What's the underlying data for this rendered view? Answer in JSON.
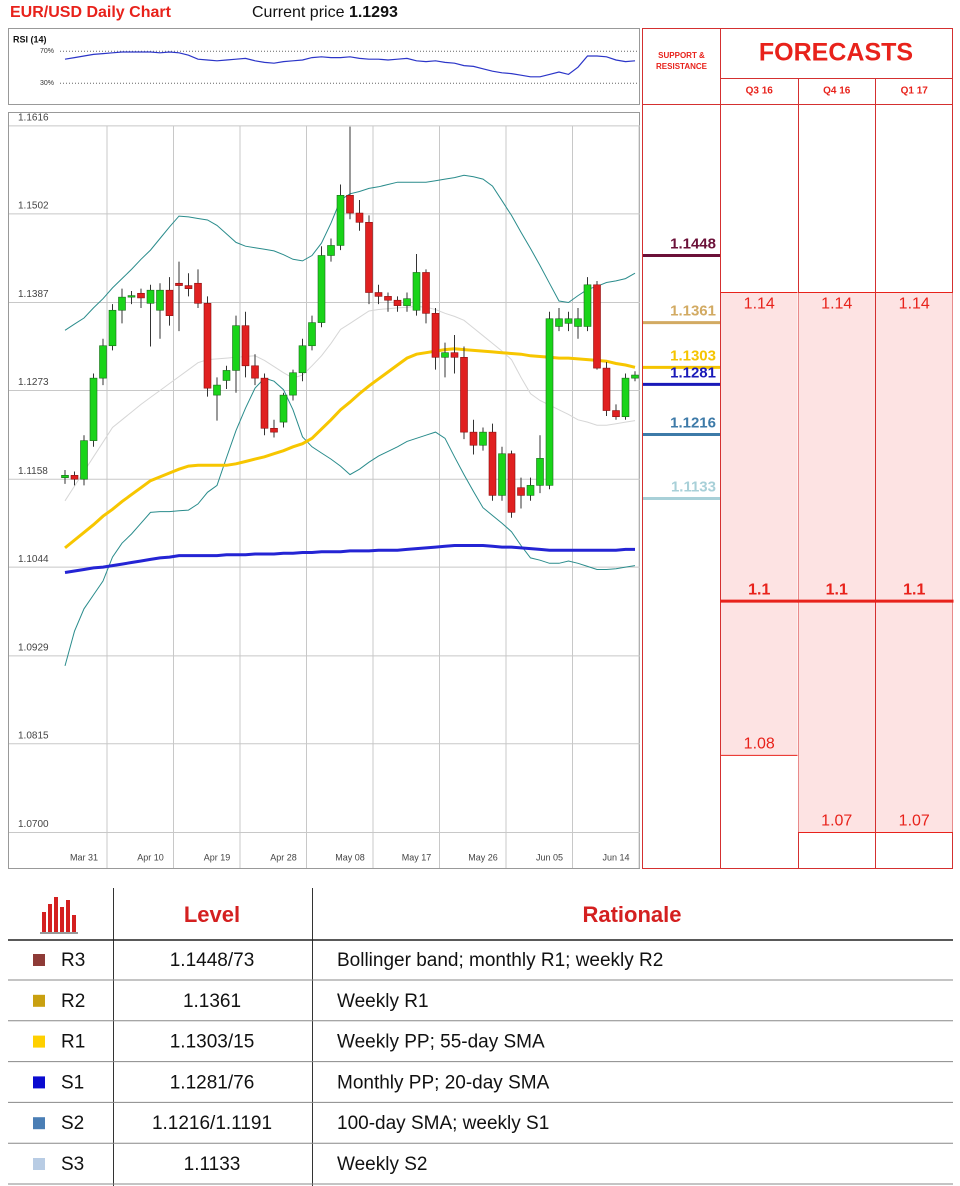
{
  "chart_data": [
    {
      "type": "candlestick",
      "title": "EUR/USD Daily Chart",
      "current_price": {
        "label": "Current price",
        "value": 1.1293
      },
      "categories": [
        null,
        null,
        "Mar 31",
        null,
        null,
        null,
        null,
        null,
        null,
        "Apr 10",
        null,
        null,
        null,
        null,
        null,
        null,
        "Apr 19",
        null,
        null,
        null,
        null,
        null,
        null,
        "Apr 28",
        null,
        null,
        null,
        null,
        null,
        null,
        "May 08",
        null,
        null,
        null,
        null,
        null,
        null,
        "May 17",
        null,
        null,
        null,
        null,
        null,
        null,
        "May 26",
        null,
        null,
        null,
        null,
        null,
        null,
        "Jun 05",
        null,
        null,
        null,
        null,
        null,
        null,
        "Jun 14",
        null,
        null
      ],
      "open": [
        1.116,
        1.1163,
        1.1158,
        1.1208,
        1.1289,
        1.1331,
        1.1377,
        1.1394,
        1.1399,
        1.1386,
        1.1377,
        1.1403,
        1.1412,
        1.1409,
        1.1412,
        1.1386,
        1.1267,
        1.1286,
        1.1299,
        1.1357,
        1.1305,
        1.1289,
        1.1224,
        1.1232,
        1.1267,
        1.1296,
        1.1331,
        1.1361,
        1.1448,
        1.1461,
        1.1526,
        1.1503,
        1.1491,
        1.14,
        1.1395,
        1.139,
        1.1383,
        1.1377,
        1.1426,
        1.1373,
        1.1316,
        1.1322,
        1.1316,
        1.1219,
        1.1202,
        1.1219,
        1.1137,
        1.1191,
        1.1147,
        1.1137,
        1.115,
        1.115,
        1.1356,
        1.136,
        1.1356,
        1.1356,
        1.141,
        1.1302,
        1.1247,
        1.1239,
        1.1289
      ],
      "high": [
        1.117,
        1.1168,
        1.1215,
        1.1295,
        1.134,
        1.1385,
        1.1405,
        1.1402,
        1.1405,
        1.141,
        1.1412,
        1.142,
        1.144,
        1.1425,
        1.143,
        1.1395,
        1.129,
        1.1305,
        1.137,
        1.1375,
        1.132,
        1.1295,
        1.1235,
        1.127,
        1.13,
        1.134,
        1.137,
        1.146,
        1.147,
        1.154,
        1.1615,
        1.152,
        1.15,
        1.141,
        1.14,
        1.1395,
        1.14,
        1.145,
        1.143,
        1.138,
        1.1335,
        1.1345,
        1.133,
        1.1235,
        1.1225,
        1.123,
        1.12,
        1.1195,
        1.116,
        1.116,
        1.1215,
        1.1375,
        1.138,
        1.1375,
        1.138,
        1.142,
        1.1415,
        1.131,
        1.1255,
        1.1295,
        1.1298
      ],
      "low": [
        1.1152,
        1.115,
        1.115,
        1.12,
        1.128,
        1.1325,
        1.136,
        1.1385,
        1.138,
        1.133,
        1.134,
        1.1357,
        1.135,
        1.1395,
        1.138,
        1.1265,
        1.1234,
        1.1275,
        1.127,
        1.129,
        1.128,
        1.1215,
        1.1212,
        1.1225,
        1.126,
        1.1285,
        1.1325,
        1.1355,
        1.144,
        1.1455,
        1.1495,
        1.148,
        1.1385,
        1.1385,
        1.1375,
        1.1375,
        1.1375,
        1.137,
        1.136,
        1.13,
        1.129,
        1.1295,
        1.121,
        1.119,
        1.1195,
        1.113,
        1.113,
        1.1108,
        1.112,
        1.113,
        1.114,
        1.1145,
        1.135,
        1.135,
        1.134,
        1.135,
        1.13,
        1.124,
        1.1235,
        1.1235,
        1.1285
      ],
      "close": [
        1.1163,
        1.1158,
        1.1208,
        1.1289,
        1.1331,
        1.1377,
        1.1394,
        1.1396,
        1.1393,
        1.1403,
        1.1403,
        1.137,
        1.1409,
        1.1405,
        1.1386,
        1.1276,
        1.128,
        1.1299,
        1.1357,
        1.1305,
        1.1289,
        1.1224,
        1.1219,
        1.1267,
        1.1296,
        1.1331,
        1.1361,
        1.1448,
        1.1461,
        1.1526,
        1.1503,
        1.1491,
        1.14,
        1.1395,
        1.139,
        1.1383,
        1.1392,
        1.1426,
        1.1373,
        1.1316,
        1.1322,
        1.1316,
        1.1219,
        1.1202,
        1.1219,
        1.1137,
        1.1191,
        1.1115,
        1.1137,
        1.115,
        1.1185,
        1.1366,
        1.1366,
        1.1366,
        1.1366,
        1.141,
        1.1302,
        1.1247,
        1.1239,
        1.1289,
        1.1293
      ],
      "up_color": "#19d419",
      "down_color": "#e02020",
      "lines": [
        {
          "color": "#d6d6d6",
          "values": [
            1.113,
            1.1149,
            1.1168,
            1.1187,
            1.1206,
            1.1225,
            1.1235,
            1.1245,
            1.1255,
            1.1264,
            1.1273,
            1.1282,
            1.1291,
            1.13,
            1.1309,
            1.1313,
            1.1314,
            1.1315,
            1.1316,
            1.1317,
            1.1318,
            1.1312,
            1.1304,
            1.1296,
            1.1289,
            1.1293,
            1.1305,
            1.1318,
            1.1334,
            1.1352,
            1.136,
            1.1368,
            1.1376,
            1.1378,
            1.1379,
            1.138,
            1.1381,
            1.1382,
            1.1381,
            1.1378,
            1.1373,
            1.1369,
            1.1364,
            1.1354,
            1.1344,
            1.1334,
            1.1324,
            1.1313,
            1.129,
            1.1269,
            1.126,
            1.1254,
            1.1248,
            1.1242,
            1.1235,
            1.1232,
            1.1228,
            1.1228,
            1.123,
            1.1232,
            1.1234
          ]
        },
        {
          "color": "#2a8c8c",
          "values": [
            1.1351,
            1.1359,
            1.1367,
            1.138,
            1.1392,
            1.1406,
            1.1418,
            1.143,
            1.1443,
            1.1455,
            1.147,
            1.1485,
            1.1499,
            1.1498,
            1.1496,
            1.1494,
            1.1487,
            1.1476,
            1.1465,
            1.146,
            1.1458,
            1.1456,
            1.1454,
            1.1449,
            1.1443,
            1.1441,
            1.1448,
            1.1464,
            1.149,
            1.152,
            1.1528,
            1.1531,
            1.1535,
            1.1537,
            1.154,
            1.1543,
            1.1543,
            1.1543,
            1.1543,
            1.1545,
            1.1547,
            1.1549,
            1.1552,
            1.155,
            1.1547,
            1.1538,
            1.1519,
            1.15,
            1.1478,
            1.1457,
            1.1435,
            1.1412,
            1.1389,
            1.1387,
            1.1396,
            1.1404,
            1.1408,
            1.1413,
            1.1415,
            1.1418,
            1.1425
          ]
        },
        {
          "color": "#2a8c8c",
          "values": [
            1.0916,
            1.0961,
            1.099,
            1.1008,
            1.1026,
            1.1057,
            1.1075,
            1.1087,
            1.1101,
            1.1115,
            1.1116,
            1.1116,
            1.1117,
            1.1118,
            1.1126,
            1.1141,
            1.115,
            1.1186,
            1.1221,
            1.125,
            1.1276,
            1.1289,
            1.1285,
            1.1274,
            1.1248,
            1.1213,
            1.12,
            1.1192,
            1.1184,
            1.1175,
            1.1164,
            1.1171,
            1.118,
            1.1188,
            1.1194,
            1.12,
            1.1207,
            1.1211,
            1.1215,
            1.1219,
            1.1211,
            1.1187,
            1.1164,
            1.1142,
            1.1121,
            1.1111,
            1.1101,
            1.109,
            1.1072,
            1.1056,
            1.1053,
            1.1049,
            1.1049,
            1.1052,
            1.1049,
            1.1045,
            1.1041,
            1.1041,
            1.1042,
            1.1044,
            1.1046
          ]
        },
        {
          "color": "#f7c600",
          "values": [
            1.1069,
            1.1079,
            1.1089,
            1.1099,
            1.111,
            1.1119,
            1.1129,
            1.1138,
            1.1147,
            1.1156,
            1.1161,
            1.1166,
            1.1171,
            1.1175,
            1.1176,
            1.1176,
            1.1176,
            1.1176,
            1.1178,
            1.1181,
            1.1184,
            1.1187,
            1.1191,
            1.1195,
            1.12,
            1.1204,
            1.1211,
            1.1223,
            1.1235,
            1.1248,
            1.1258,
            1.1269,
            1.1279,
            1.1288,
            1.1297,
            1.1306,
            1.1315,
            1.132,
            1.1322,
            1.1324,
            1.1326,
            1.1327,
            1.1326,
            1.1325,
            1.1324,
            1.1323,
            1.1322,
            1.1321,
            1.132,
            1.1318,
            1.1317,
            1.1316,
            1.1315,
            1.1315,
            1.1314,
            1.1313,
            1.1312,
            1.1311,
            1.1308,
            1.1306,
            1.1303
          ]
        },
        {
          "color": "#2424d4",
          "values": [
            1.1037,
            1.1039,
            1.1041,
            1.1043,
            1.1044,
            1.1046,
            1.1048,
            1.105,
            1.1052,
            1.1054,
            1.1056,
            1.1057,
            1.1059,
            1.1059,
            1.1059,
            1.1059,
            1.1059,
            1.106,
            1.106,
            1.106,
            1.1061,
            1.1061,
            1.1061,
            1.1062,
            1.1062,
            1.1063,
            1.1063,
            1.1064,
            1.1064,
            1.1064,
            1.1065,
            1.1065,
            1.1065,
            1.1066,
            1.1066,
            1.1066,
            1.1067,
            1.1068,
            1.1069,
            1.107,
            1.1071,
            1.1072,
            1.1072,
            1.1072,
            1.1072,
            1.1071,
            1.107,
            1.107,
            1.1069,
            1.1068,
            1.1067,
            1.1066,
            1.1066,
            1.1066,
            1.1066,
            1.1066,
            1.1066,
            1.1066,
            1.1066,
            1.1067,
            1.1067
          ]
        }
      ],
      "ylim": [
        1.0654,
        1.1634
      ],
      "yticks": [
        1.1616,
        1.1502,
        1.1387,
        1.1273,
        1.1158,
        1.1044,
        1.0929,
        1.0815,
        {
          "value": 1.07,
          "label": "1.0700"
        }
      ],
      "grid": true,
      "support_resistance": {
        "title": "SUPPORT & RESISTANCE",
        "levels": [
          {
            "value": 1.1448,
            "color": "#6b1038"
          },
          {
            "value": 1.1361,
            "color": "#d2aa62"
          },
          {
            "value": 1.1303,
            "color": "#f5c400"
          },
          {
            "value": 1.1281,
            "color": "#1a1ab8"
          },
          {
            "value": 1.1216,
            "color": "#3d7aa8"
          },
          {
            "value": 1.1133,
            "color": "#a8d0d8"
          }
        ]
      },
      "forecasts": {
        "title": "FORECASTS",
        "color": "#e8221b",
        "periods": [
          {
            "label": "Q3 16",
            "high": 1.14,
            "mid": 1.1,
            "low": 1.08
          },
          {
            "label": "Q4 16",
            "high": 1.14,
            "mid": 1.1,
            "low": 1.07
          },
          {
            "label": "Q1 17",
            "high": 1.14,
            "mid": 1.1,
            "low": 1.07
          }
        ]
      }
    },
    {
      "type": "line",
      "title": "RSI (14)",
      "color": "#2b35c8",
      "values": [
        60,
        62,
        64,
        66,
        67,
        68,
        69,
        69,
        69,
        69,
        68,
        69,
        68,
        65,
        60,
        59,
        58,
        59,
        60,
        61,
        58,
        56,
        55,
        57,
        58,
        59,
        62,
        63,
        62,
        62,
        63,
        61,
        60,
        60,
        59,
        60,
        61,
        58,
        57,
        58,
        56,
        55,
        52,
        51,
        48,
        45,
        43,
        42,
        40,
        38,
        38,
        41,
        44,
        41,
        50,
        64,
        64,
        63,
        59,
        57,
        58
      ],
      "ylim": [
        4,
        99
      ],
      "yticks": [
        {
          "value": 70,
          "label": "70%"
        },
        {
          "value": 30,
          "label": "30%"
        }
      ]
    }
  ],
  "table": {
    "columns": [
      "Level",
      "Rationale"
    ],
    "rows": [
      {
        "code": "R3",
        "color": "#8e3b37",
        "level": "1.1448/73",
        "rationale": "Bollinger band; monthly R1; weekly R2"
      },
      {
        "code": "R2",
        "color": "#c9a010",
        "level": "1.1361",
        "rationale": "Weekly R1"
      },
      {
        "code": "R1",
        "color": "#ffd000",
        "level": "1.1303/15",
        "rationale": "Weekly PP; 55-day SMA"
      },
      {
        "code": "S1",
        "color": "#0a0ad0",
        "level": "1.1281/76",
        "rationale": "Monthly PP; 20-day SMA"
      },
      {
        "code": "S2",
        "color": "#4a7eb5",
        "level": "1.1216/1.1191",
        "rationale": "100-day SMA; weekly S1"
      },
      {
        "code": "S3",
        "color": "#b8cce4",
        "level": "1.1133",
        "rationale": "Weekly S2"
      }
    ]
  }
}
